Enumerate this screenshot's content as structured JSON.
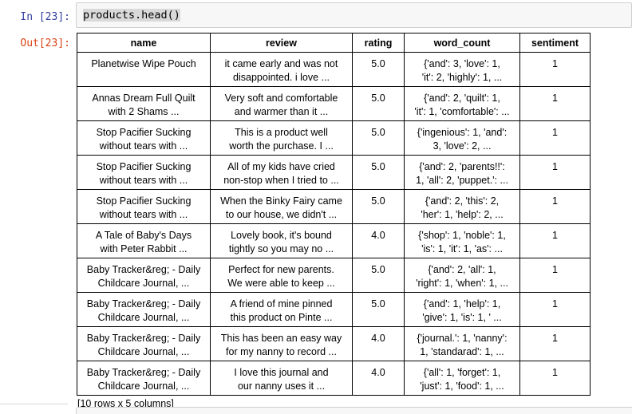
{
  "colors": {
    "in_prompt": "#303F9F",
    "out_prompt": "#D84315",
    "input_background": "#f7f7f7",
    "input_border": "#cfcfcf",
    "code_highlight": "#d9d9d9",
    "table_border": "#000000"
  },
  "input_cell": {
    "prompt": "In [23]:",
    "code": "products.head()"
  },
  "output_cell": {
    "prompt": "Out[23]:",
    "table": {
      "headers": [
        "name",
        "review",
        "rating",
        "word_count",
        "sentiment"
      ],
      "rows": [
        {
          "name": "Planetwise Wipe Pouch",
          "review": "it came early and was not\ndisappointed. i love ...",
          "rating": "5.0",
          "word_count": "{'and': 3, 'love': 1,\n'it': 2, 'highly': 1, ...",
          "sentiment": "1"
        },
        {
          "name": "Annas Dream Full Quilt\nwith 2 Shams ...",
          "review": "Very soft and comfortable\nand warmer than it ...",
          "rating": "5.0",
          "word_count": "{'and': 2, 'quilt': 1,\n'it': 1, 'comfortable': ...",
          "sentiment": "1"
        },
        {
          "name": "Stop Pacifier Sucking\nwithout tears with ...",
          "review": "This is a product well\nworth the purchase. I ...",
          "rating": "5.0",
          "word_count": "{'ingenious': 1, 'and':\n3, 'love': 2, ...",
          "sentiment": "1"
        },
        {
          "name": "Stop Pacifier Sucking\nwithout tears with ...",
          "review": "All of my kids have cried\nnon-stop when I tried to ...",
          "rating": "5.0",
          "word_count": "{'and': 2, 'parents!!':\n1, 'all': 2, 'puppet.': ...",
          "sentiment": "1"
        },
        {
          "name": "Stop Pacifier Sucking\nwithout tears with ...",
          "review": "When the Binky Fairy came\nto our house, we didn't ...",
          "rating": "5.0",
          "word_count": "{'and': 2, 'this': 2,\n'her': 1, 'help': 2, ...",
          "sentiment": "1"
        },
        {
          "name": "A Tale of Baby's Days\nwith Peter Rabbit ...",
          "review": "Lovely book, it's bound\ntightly so you may no ...",
          "rating": "4.0",
          "word_count": "{'shop': 1, 'noble': 1,\n'is': 1, 'it': 1, 'as': ...",
          "sentiment": "1"
        },
        {
          "name": "Baby Tracker&reg; - Daily\nChildcare Journal, ...",
          "review": "Perfect for new parents.\nWe were able to keep ...",
          "rating": "5.0",
          "word_count": "{'and': 2, 'all': 1,\n'right': 1, 'when': 1, ...",
          "sentiment": "1"
        },
        {
          "name": "Baby Tracker&reg; - Daily\nChildcare Journal, ...",
          "review": "A friend of mine pinned\nthis product on Pinte ...",
          "rating": "5.0",
          "word_count": "{'and': 1, 'help': 1,\n'give': 1, 'is': 1, ' ...",
          "sentiment": "1"
        },
        {
          "name": "Baby Tracker&reg; - Daily\nChildcare Journal, ...",
          "review": "This has been an easy way\nfor my nanny to record ...",
          "rating": "4.0",
          "word_count": "{'journal.': 1, 'nanny':\n1, 'standarad': 1, ...",
          "sentiment": "1"
        },
        {
          "name": "Baby Tracker&reg; - Daily\nChildcare Journal, ...",
          "review": "I love this journal and\nour nanny uses it ...",
          "rating": "4.0",
          "word_count": "{'all': 1, 'forget': 1,\n'just': 1, 'food': 1, ...",
          "sentiment": "1"
        }
      ]
    },
    "shape_note": "[10 rows x 5 columns]"
  }
}
